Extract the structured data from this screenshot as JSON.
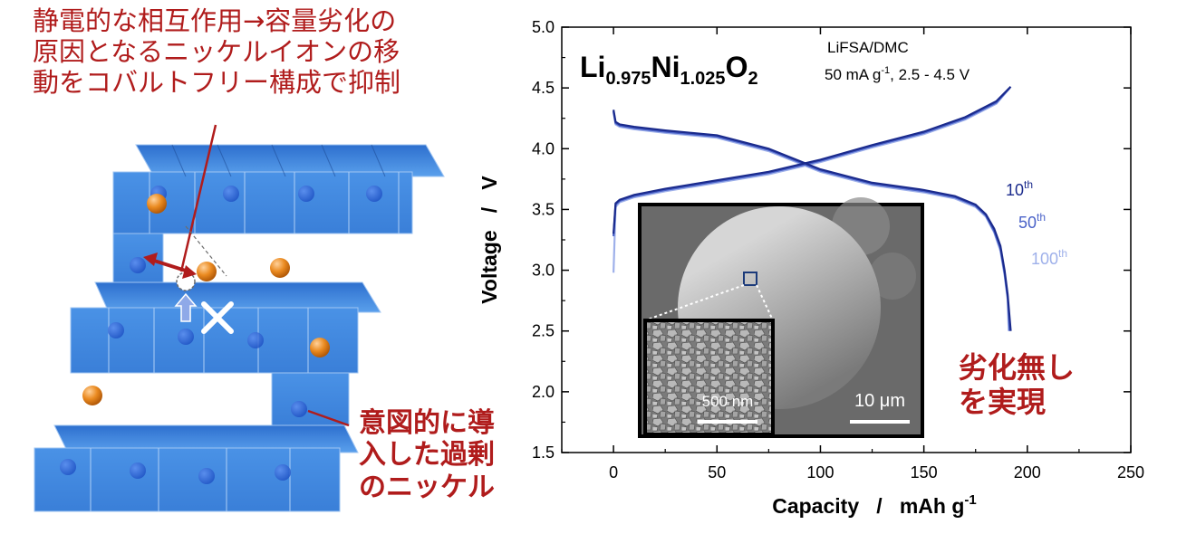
{
  "left_panel": {
    "caption_top_lines": [
      "静電的な相互作用→容量劣化の",
      "原因となるニッケルイオンの移",
      "動をコバルトフリー構成で抑制"
    ],
    "caption_bottom_lines": [
      "意図的に導",
      "入した過剰",
      "のニッケル"
    ],
    "colors": {
      "octahedra": "#3f87e0",
      "lithium_sphere": "#e8801c",
      "caption": "#b01c1c"
    }
  },
  "chart_data": {
    "type": "line",
    "xlabel": "Capacity",
    "xunit": "mAh g",
    "xunit_sup": "-1",
    "ylabel": "Voltage",
    "yunit": "V",
    "xlim": [
      -25,
      250
    ],
    "ylim": [
      1.5,
      5.0
    ],
    "xticks": [
      0,
      50,
      100,
      150,
      200,
      250
    ],
    "yticks": [
      1.5,
      2.0,
      2.5,
      3.0,
      3.5,
      4.0,
      4.5,
      5.0
    ],
    "formula": {
      "li": "Li",
      "li_sub": "0.975",
      "ni": "Ni",
      "ni_sub": "1.025",
      "o": "O",
      "o_sub": "2"
    },
    "condition_electrolyte": "LiFSA/DMC",
    "condition_rate": {
      "pre": "50 mA g",
      "sup": "-1",
      "post": ", 2.5 - 4.5 V"
    },
    "series": [
      {
        "name": "10",
        "name_sup": "th",
        "color": "#1a2a8c",
        "charge": [
          [
            0,
            3.3
          ],
          [
            1,
            3.55
          ],
          [
            3,
            3.58
          ],
          [
            10,
            3.62
          ],
          [
            25,
            3.67
          ],
          [
            50,
            3.74
          ],
          [
            75,
            3.81
          ],
          [
            100,
            3.91
          ],
          [
            125,
            4.03
          ],
          [
            150,
            4.14
          ],
          [
            170,
            4.26
          ],
          [
            185,
            4.39
          ],
          [
            192,
            4.51
          ]
        ],
        "discharge": [
          [
            0,
            4.32
          ],
          [
            1,
            4.22
          ],
          [
            3,
            4.2
          ],
          [
            10,
            4.18
          ],
          [
            25,
            4.15
          ],
          [
            50,
            4.11
          ],
          [
            75,
            4.0
          ],
          [
            100,
            3.83
          ],
          [
            125,
            3.72
          ],
          [
            150,
            3.66
          ],
          [
            165,
            3.61
          ],
          [
            175,
            3.54
          ],
          [
            180,
            3.46
          ],
          [
            184,
            3.34
          ],
          [
            187,
            3.2
          ],
          [
            189,
            3.0
          ],
          [
            190.5,
            2.8
          ],
          [
            192,
            2.5
          ]
        ]
      },
      {
        "name": "50",
        "name_sup": "th",
        "color": "#4a62c8",
        "charge": [
          [
            0,
            3.28
          ],
          [
            1,
            3.54
          ],
          [
            3,
            3.57
          ],
          [
            10,
            3.61
          ],
          [
            25,
            3.66
          ],
          [
            50,
            3.73
          ],
          [
            75,
            3.8
          ],
          [
            100,
            3.9
          ],
          [
            125,
            4.02
          ],
          [
            150,
            4.13
          ],
          [
            170,
            4.25
          ],
          [
            185,
            4.38
          ],
          [
            191.5,
            4.5
          ]
        ],
        "discharge": [
          [
            0,
            4.31
          ],
          [
            1,
            4.21
          ],
          [
            3,
            4.19
          ],
          [
            10,
            4.17
          ],
          [
            25,
            4.14
          ],
          [
            50,
            4.1
          ],
          [
            75,
            3.99
          ],
          [
            100,
            3.82
          ],
          [
            125,
            3.71
          ],
          [
            150,
            3.65
          ],
          [
            165,
            3.6
          ],
          [
            175,
            3.53
          ],
          [
            180,
            3.45
          ],
          [
            184,
            3.32
          ],
          [
            187,
            3.18
          ],
          [
            189,
            2.98
          ],
          [
            190.5,
            2.78
          ],
          [
            191.5,
            2.5
          ]
        ]
      },
      {
        "name": "100",
        "name_sup": "th",
        "color": "#9eb0ea",
        "charge": [
          [
            0,
            2.98
          ],
          [
            1,
            3.52
          ],
          [
            3,
            3.56
          ],
          [
            10,
            3.6
          ],
          [
            25,
            3.65
          ],
          [
            50,
            3.72
          ],
          [
            75,
            3.79
          ],
          [
            100,
            3.89
          ],
          [
            125,
            4.01
          ],
          [
            150,
            4.12
          ],
          [
            170,
            4.24
          ],
          [
            185,
            4.37
          ],
          [
            191,
            4.49
          ]
        ],
        "discharge": [
          [
            0,
            4.3
          ],
          [
            1,
            4.2
          ],
          [
            3,
            4.18
          ],
          [
            10,
            4.16
          ],
          [
            25,
            4.13
          ],
          [
            50,
            4.09
          ],
          [
            75,
            3.98
          ],
          [
            100,
            3.81
          ],
          [
            125,
            3.7
          ],
          [
            150,
            3.64
          ],
          [
            165,
            3.59
          ],
          [
            175,
            3.52
          ],
          [
            180,
            3.44
          ],
          [
            184,
            3.31
          ],
          [
            187,
            3.16
          ],
          [
            189,
            2.96
          ],
          [
            190.5,
            2.76
          ],
          [
            191,
            2.5
          ]
        ]
      }
    ],
    "inset_scale_bar_large": "10 μm",
    "inset_scale_bar_small": "500 nm",
    "annotation_result_lines": [
      "劣化無し",
      "を実現"
    ]
  }
}
